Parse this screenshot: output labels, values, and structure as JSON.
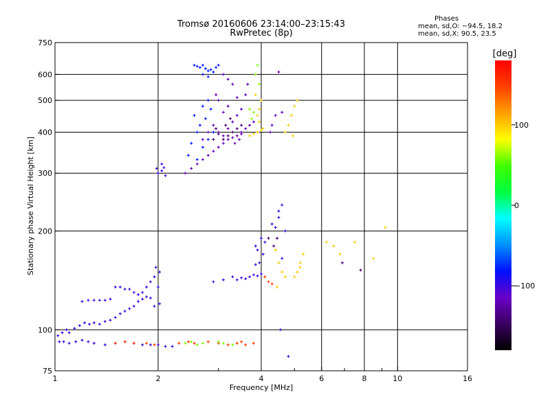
{
  "chart_data": {
    "type": "scatter",
    "title": "Tromsø 20160606 23:14:00–23:15:43",
    "subtitle": "RwPretec (8p)",
    "xlabel": "Frequency [MHz]",
    "ylabel": "Stationary phase Virtual Height [km]",
    "x_scale": "log",
    "y_scale": "log",
    "xlim": [
      1,
      16
    ],
    "ylim": [
      75,
      750
    ],
    "x_ticks": [
      1,
      2,
      4,
      6,
      8,
      10,
      16
    ],
    "x_tick_labels": [
      "1",
      "2",
      "4",
      "6",
      "8",
      "10",
      "16"
    ],
    "x_minor_ticks": [
      3,
      5,
      7,
      9
    ],
    "y_ticks": [
      75,
      100,
      200,
      300,
      400,
      500,
      600,
      750
    ],
    "y_tick_labels": [
      "75",
      "100",
      "200",
      "300",
      "400",
      "500",
      "600",
      "750"
    ],
    "grid": true,
    "grid_x": [
      2,
      4,
      6,
      8,
      10
    ],
    "grid_y": [
      100,
      200,
      300,
      400,
      500,
      600
    ],
    "stats": {
      "heading": "Phases",
      "line_o": "mean, sd,O: −94.5, 18.2",
      "line_x": "mean, sd,X:  90.5, 23.5"
    },
    "colorbar": {
      "label": "[deg]",
      "min": -180,
      "max": 180,
      "ticks": [
        100,
        0,
        -100
      ],
      "tick_labels": [
        "100",
        "0",
        "−100"
      ],
      "colors": [
        "#000000",
        "#3a0060",
        "#6a00c8",
        "#0010ff",
        "#0090ff",
        "#00ffff",
        "#00ff40",
        "#40ff00",
        "#ffff00",
        "#ffa000",
        "#ff4000",
        "#ff0000"
      ]
    },
    "series": [
      {
        "name": "",
        "color_hint": "blue",
        "phase": -100,
        "points": [
          [
            1.02,
            96
          ],
          [
            1.05,
            98
          ],
          [
            1.08,
            100
          ],
          [
            1.1,
            98
          ],
          [
            1.14,
            101
          ],
          [
            1.18,
            103
          ],
          [
            1.22,
            105
          ],
          [
            1.26,
            104
          ],
          [
            1.3,
            105
          ],
          [
            1.35,
            104
          ],
          [
            1.4,
            106
          ],
          [
            1.45,
            107
          ],
          [
            1.5,
            109
          ],
          [
            1.55,
            112
          ],
          [
            1.6,
            114
          ],
          [
            1.65,
            116
          ],
          [
            1.7,
            118
          ],
          [
            1.75,
            122
          ],
          [
            1.8,
            130
          ],
          [
            1.85,
            135
          ],
          [
            1.9,
            140
          ],
          [
            1.95,
            145
          ],
          [
            2.0,
            135
          ],
          [
            2.02,
            120
          ],
          [
            1.95,
            118
          ],
          [
            1.9,
            125
          ],
          [
            1.85,
            126
          ],
          [
            1.8,
            124
          ],
          [
            1.75,
            128
          ],
          [
            1.7,
            130
          ],
          [
            1.65,
            133
          ],
          [
            1.6,
            133
          ],
          [
            1.55,
            135
          ],
          [
            1.5,
            135
          ],
          [
            1.45,
            124
          ],
          [
            1.4,
            123
          ],
          [
            1.35,
            123
          ],
          [
            1.3,
            123
          ],
          [
            1.25,
            123
          ],
          [
            1.2,
            122
          ],
          [
            1.97,
            155
          ],
          [
            2.02,
            150
          ],
          [
            1.03,
            92
          ],
          [
            1.06,
            92
          ],
          [
            1.1,
            91
          ],
          [
            1.15,
            92
          ],
          [
            1.2,
            93
          ],
          [
            1.25,
            92
          ],
          [
            1.3,
            91
          ],
          [
            1.4,
            90
          ],
          [
            1.5,
            91
          ],
          [
            1.6,
            92
          ],
          [
            1.7,
            91
          ],
          [
            1.8,
            90
          ],
          [
            1.9,
            90
          ],
          [
            2.0,
            90
          ],
          [
            2.1,
            89
          ],
          [
            2.2,
            89
          ],
          [
            1.98,
            310
          ],
          [
            2.0,
            300
          ],
          [
            2.05,
            305
          ],
          [
            2.08,
            312
          ],
          [
            2.1,
            295
          ],
          [
            2.05,
            320
          ],
          [
            3.3,
            145
          ],
          [
            3.4,
            142
          ],
          [
            3.5,
            144
          ],
          [
            3.6,
            143
          ],
          [
            3.7,
            145
          ],
          [
            3.8,
            147
          ],
          [
            3.9,
            146
          ],
          [
            4.0,
            148
          ],
          [
            3.95,
            160
          ],
          [
            3.9,
            175
          ],
          [
            3.85,
            180
          ],
          [
            4.0,
            190
          ],
          [
            4.1,
            185
          ],
          [
            4.05,
            170
          ],
          [
            3.85,
            158
          ],
          [
            4.3,
            210
          ],
          [
            4.4,
            205
          ],
          [
            4.5,
            220
          ],
          [
            4.6,
            240
          ],
          [
            4.5,
            230
          ],
          [
            4.7,
            200
          ],
          [
            4.6,
            165
          ],
          [
            2.9,
            140
          ],
          [
            3.1,
            142
          ],
          [
            4.55,
            100
          ],
          [
            4.8,
            83
          ]
        ]
      },
      {
        "name": "",
        "color_hint": "dark-blue",
        "phase": -120,
        "points": [
          [
            2.4,
            300
          ],
          [
            2.5,
            310
          ],
          [
            2.6,
            320
          ],
          [
            2.7,
            330
          ],
          [
            2.8,
            340
          ],
          [
            2.9,
            350
          ],
          [
            3.0,
            360
          ],
          [
            3.1,
            370
          ],
          [
            3.2,
            380
          ],
          [
            3.3,
            385
          ],
          [
            3.4,
            390
          ],
          [
            3.5,
            395
          ],
          [
            2.7,
            380
          ],
          [
            2.8,
            400
          ],
          [
            2.9,
            420
          ],
          [
            3.0,
            400
          ],
          [
            3.1,
            390
          ],
          [
            3.2,
            410
          ],
          [
            3.3,
            430
          ],
          [
            3.4,
            450
          ],
          [
            3.5,
            470
          ],
          [
            3.6,
            520
          ],
          [
            3.65,
            560
          ],
          [
            3.4,
            510
          ],
          [
            3.3,
            560
          ],
          [
            3.2,
            480
          ],
          [
            3.1,
            460
          ],
          [
            3.0,
            500
          ],
          [
            2.95,
            520
          ],
          [
            3.5,
            400
          ],
          [
            3.6,
            410
          ],
          [
            3.7,
            420
          ],
          [
            3.8,
            430
          ],
          [
            3.2,
            580
          ],
          [
            3.1,
            600
          ],
          [
            4.5,
            610
          ],
          [
            4.6,
            460
          ],
          [
            4.4,
            450
          ],
          [
            4.3,
            420
          ],
          [
            4.25,
            400
          ],
          [
            3.35,
            370
          ],
          [
            3.45,
            380
          ]
        ]
      },
      {
        "name": "",
        "color_hint": "light-blue",
        "phase": -80,
        "points": [
          [
            2.55,
            640
          ],
          [
            2.6,
            635
          ],
          [
            2.65,
            630
          ],
          [
            2.7,
            640
          ],
          [
            2.75,
            625
          ],
          [
            2.8,
            615
          ],
          [
            2.85,
            620
          ],
          [
            2.9,
            610
          ],
          [
            2.95,
            630
          ],
          [
            3.0,
            640
          ],
          [
            2.7,
            600
          ],
          [
            2.8,
            590
          ],
          [
            2.6,
            330
          ],
          [
            2.7,
            360
          ],
          [
            2.8,
            380
          ],
          [
            2.9,
            400
          ],
          [
            2.65,
            420
          ],
          [
            2.75,
            440
          ],
          [
            2.85,
            470
          ],
          [
            2.6,
            400
          ],
          [
            2.5,
            370
          ],
          [
            2.45,
            340
          ],
          [
            2.55,
            450
          ],
          [
            2.7,
            480
          ],
          [
            2.8,
            500
          ]
        ]
      },
      {
        "name": "",
        "color_hint": "yellow",
        "phase": 100,
        "points": [
          [
            3.7,
            390
          ],
          [
            3.8,
            395
          ],
          [
            3.9,
            400
          ],
          [
            4.0,
            405
          ],
          [
            4.05,
            410
          ],
          [
            3.95,
            430
          ],
          [
            3.9,
            450
          ],
          [
            3.95,
            470
          ],
          [
            4.0,
            500
          ],
          [
            3.85,
            520
          ],
          [
            4.7,
            400
          ],
          [
            4.8,
            420
          ],
          [
            4.9,
            450
          ],
          [
            5.0,
            480
          ],
          [
            5.1,
            500
          ],
          [
            4.95,
            390
          ],
          [
            4.4,
            175
          ],
          [
            4.5,
            160
          ],
          [
            4.6,
            150
          ],
          [
            4.7,
            145
          ],
          [
            5.0,
            145
          ],
          [
            5.1,
            150
          ],
          [
            5.2,
            160
          ],
          [
            5.3,
            170
          ],
          [
            6.2,
            185
          ],
          [
            6.5,
            180
          ],
          [
            6.8,
            170
          ],
          [
            7.5,
            185
          ],
          [
            8.5,
            165
          ],
          [
            9.2,
            205
          ],
          [
            5.2,
            155
          ],
          [
            4.45,
            135
          ]
        ]
      },
      {
        "name": "",
        "color_hint": "orange-red",
        "phase": 150,
        "points": [
          [
            1.6,
            92
          ],
          [
            1.7,
            91
          ],
          [
            1.85,
            91
          ],
          [
            1.95,
            90
          ],
          [
            2.3,
            91
          ],
          [
            2.45,
            92
          ],
          [
            2.55,
            91
          ],
          [
            2.8,
            92
          ],
          [
            3.0,
            91
          ],
          [
            3.2,
            90
          ],
          [
            3.4,
            91
          ],
          [
            3.5,
            92
          ],
          [
            3.6,
            90
          ],
          [
            3.8,
            91
          ],
          [
            1.5,
            91
          ],
          [
            4.1,
            145
          ],
          [
            4.2,
            140
          ],
          [
            4.3,
            138
          ]
        ]
      },
      {
        "name": "",
        "color_hint": "green-yellow",
        "phase": 60,
        "points": [
          [
            2.4,
            91
          ],
          [
            2.5,
            92
          ],
          [
            2.6,
            90
          ],
          [
            2.7,
            91
          ],
          [
            3.0,
            92
          ],
          [
            3.1,
            91
          ],
          [
            3.3,
            90
          ],
          [
            3.9,
            640
          ],
          [
            3.85,
            600
          ],
          [
            3.95,
            560
          ],
          [
            3.7,
            470
          ],
          [
            3.8,
            460
          ],
          [
            3.75,
            440
          ]
        ]
      },
      {
        "name": "",
        "color_hint": "purple",
        "phase": -140,
        "points": [
          [
            3.3,
            400
          ],
          [
            3.4,
            410
          ],
          [
            3.5,
            420
          ],
          [
            3.2,
            390
          ],
          [
            3.1,
            380
          ],
          [
            3.0,
            395
          ],
          [
            2.9,
            380
          ],
          [
            3.15,
            420
          ],
          [
            3.25,
            440
          ],
          [
            2.95,
            410
          ],
          [
            6.9,
            160
          ],
          [
            7.8,
            152
          ],
          [
            4.2,
            190
          ],
          [
            4.35,
            180
          ],
          [
            4.45,
            190
          ]
        ]
      }
    ]
  }
}
